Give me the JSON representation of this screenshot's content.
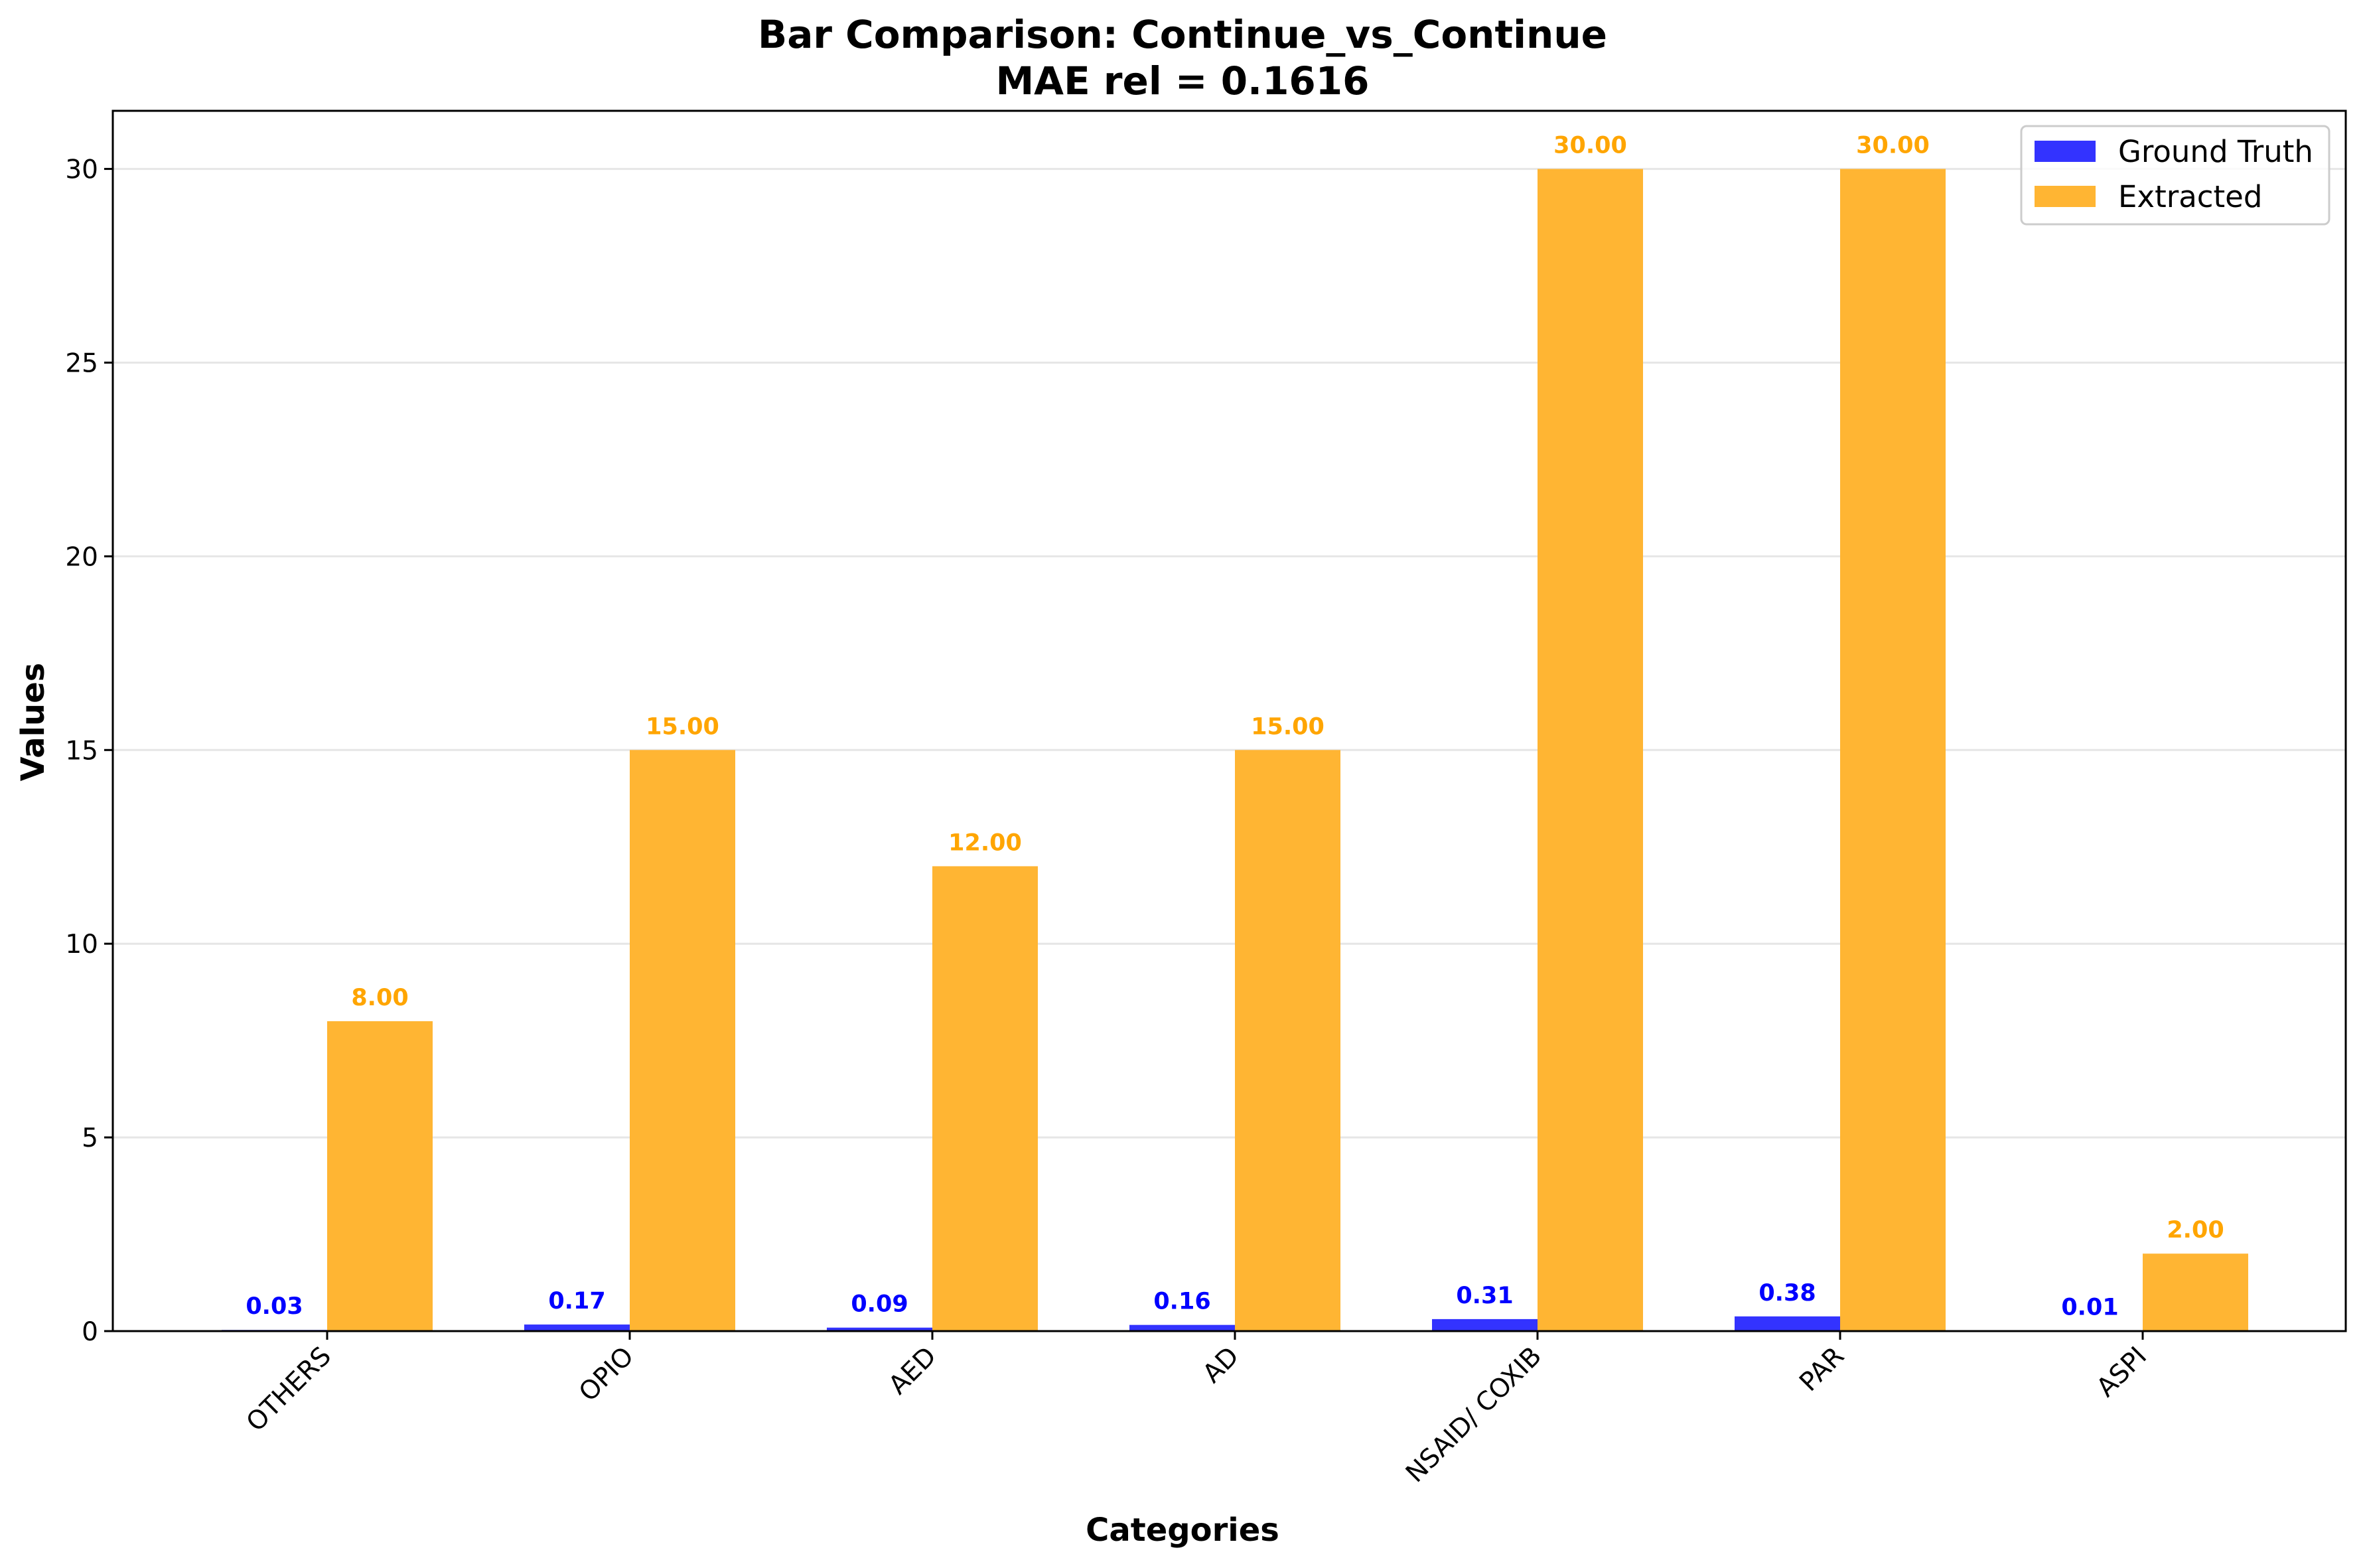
{
  "chart_data": {
    "type": "bar",
    "title": "Bar Comparison: Continue_vs_Continue",
    "subtitle": "MAE rel = 0.1616",
    "xlabel": "Categories",
    "ylabel": "Values",
    "categories": [
      "OTHERS",
      "OPIO",
      "AED",
      "AD",
      "NSAID/ COXIB",
      "PAR",
      "ASPI"
    ],
    "series": [
      {
        "name": "Ground Truth",
        "color": "#3333ff",
        "label_color": "#0000ff",
        "values": [
          0.03,
          0.17,
          0.09,
          0.16,
          0.31,
          0.38,
          0.01
        ],
        "labels": [
          "0.03",
          "0.17",
          "0.09",
          "0.16",
          "0.31",
          "0.38",
          "0.01"
        ]
      },
      {
        "name": "Extracted",
        "color": "#ffb533",
        "label_color": "#ffa500",
        "values": [
          8.0,
          15.0,
          12.0,
          15.0,
          30.0,
          30.0,
          2.0
        ],
        "labels": [
          "8.00",
          "15.00",
          "12.00",
          "15.00",
          "30.00",
          "30.00",
          "2.00"
        ]
      }
    ],
    "ylim": [
      0,
      31.5
    ],
    "yticks": [
      0,
      5,
      10,
      15,
      20,
      25,
      30
    ],
    "ytick_labels": [
      "0",
      "5",
      "10",
      "15",
      "20",
      "25",
      "30"
    ],
    "grid": "y",
    "legend_position": "top-right"
  }
}
